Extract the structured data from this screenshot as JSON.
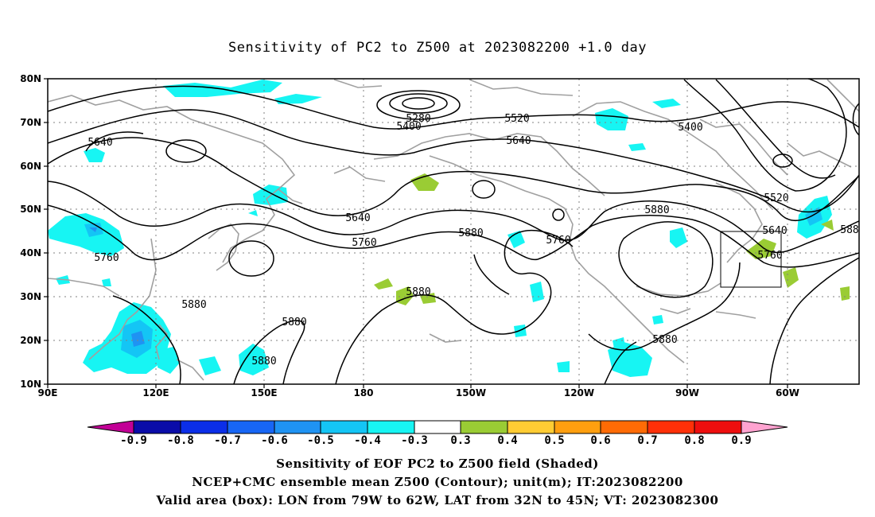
{
  "title": "Sensitivity of PC2 to Z500 at 2023082200 +1.0 day",
  "lat_labels": [
    "80N",
    "70N",
    "60N",
    "50N",
    "40N",
    "30N",
    "20N",
    "10N"
  ],
  "lon_labels": [
    "90E",
    "120E",
    "150E",
    "180",
    "150W",
    "120W",
    "90W",
    "60W"
  ],
  "contour_labels": [
    "5280",
    "5400",
    "5520",
    "5400",
    "5640",
    "5640",
    "5640",
    "5760",
    "5880",
    "5760",
    "5880",
    "5760",
    "5520",
    "5640",
    "5880",
    "5880",
    "5880",
    "5760",
    "5880",
    "5880",
    "588"
  ],
  "colorbar": {
    "labels": [
      "-0.9",
      "-0.8",
      "-0.7",
      "-0.6",
      "-0.5",
      "-0.4",
      "-0.3",
      "0.3",
      "0.4",
      "0.5",
      "0.6",
      "0.7",
      "0.8",
      "0.9"
    ],
    "colors": [
      "#c20096",
      "#0a0ca8",
      "#0b2ee8",
      "#1766f5",
      "#1f93f3",
      "#14c5f5",
      "#17f5f3",
      "#ffffff",
      "#9acc34",
      "#ffcc33",
      "#ff9f0f",
      "#ff6b05",
      "#ff3008",
      "#ee0e0e",
      "#ffa3d0"
    ]
  },
  "colors": {
    "map_line": "#a0a0a0",
    "contour": "#000000",
    "grid": "#808080",
    "neg_shade": "#17f5f3",
    "pos_shade": "#9acc34"
  },
  "caption": {
    "line1": "Sensitivity of EOF PC2 to Z500 field (Shaded)",
    "line2": "NCEP+CMC ensemble mean Z500 (Contour); unit(m); IT:2023082200",
    "line3": "Valid area (box): LON from 79W to 62W, LAT from 32N to 45N; VT: 2023082300"
  }
}
